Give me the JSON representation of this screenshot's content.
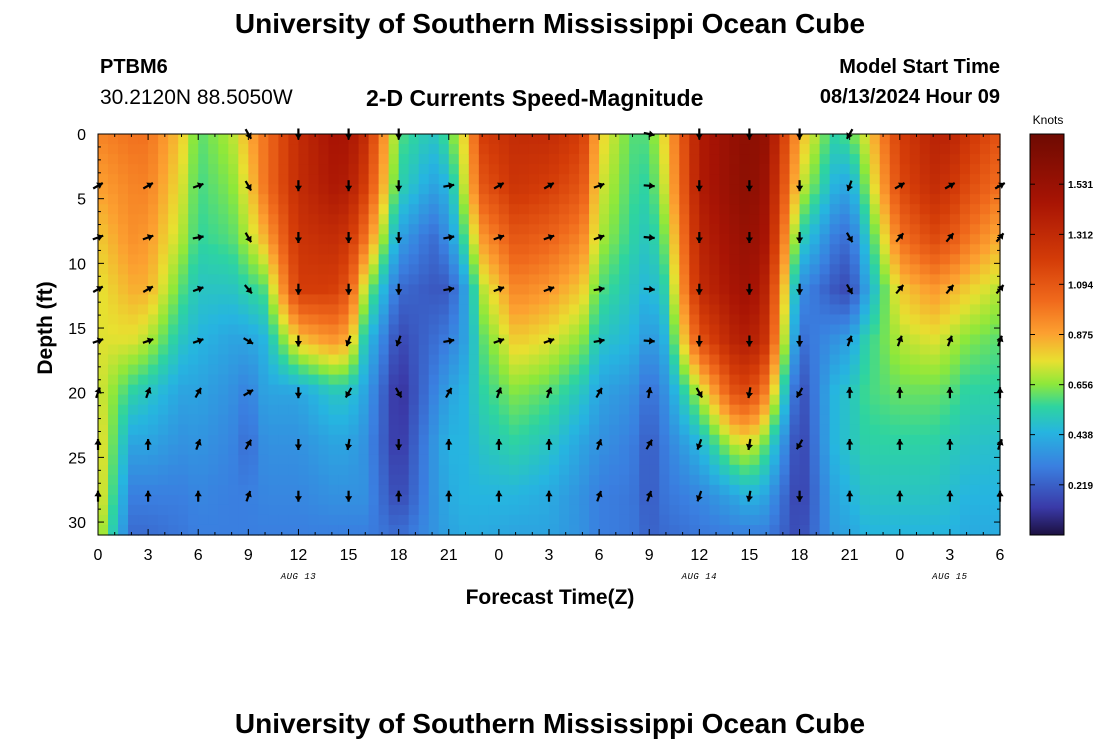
{
  "header": {
    "title": "University of Southern Mississippi Ocean Cube",
    "station": "PTBM6",
    "coordinates": "30.2120N  88.5050W",
    "subtitle": "2-D Currents Speed-Magnitude",
    "model_start_label": "Model Start Time",
    "model_start_value": "08/13/2024 Hour 09"
  },
  "footer": {
    "title": "University of Southern Mississippi Ocean Cube"
  },
  "chart_data": {
    "type": "heatmap",
    "title": "2-D Currents Speed-Magnitude",
    "xlabel": "Forecast Time(Z)",
    "ylabel": "Depth (ft)",
    "x_range_hours": [
      0,
      54
    ],
    "ylim": [
      0,
      31
    ],
    "y_inverted": true,
    "x_tick_labels": [
      "0",
      "3",
      "6",
      "9",
      "12",
      "15",
      "18",
      "21",
      "0",
      "3",
      "6",
      "9",
      "12",
      "15",
      "18",
      "21",
      "0",
      "3",
      "6"
    ],
    "y_ticks": [
      0,
      5,
      10,
      15,
      20,
      25,
      30
    ],
    "day_labels": [
      {
        "text": "AUG 13",
        "hour": 12
      },
      {
        "text": "AUG 14",
        "hour": 36
      },
      {
        "text": "AUG 15",
        "hour": 51
      }
    ],
    "colorbar": {
      "title": "Knots",
      "min": 0.0,
      "max": 1.75,
      "tick_labels": [
        "1.531",
        "1.312",
        "1.094",
        "0.875",
        "0.656",
        "0.438",
        "0.219"
      ],
      "tick_values": [
        1.531,
        1.312,
        1.094,
        0.875,
        0.656,
        0.438,
        0.219
      ],
      "stops": [
        {
          "v": 0.0,
          "color": "#1c1040"
        },
        {
          "v": 0.12,
          "color": "#3a3aa8"
        },
        {
          "v": 0.3,
          "color": "#3a7fe0"
        },
        {
          "v": 0.45,
          "color": "#26b5e0"
        },
        {
          "v": 0.56,
          "color": "#2ed4a0"
        },
        {
          "v": 0.66,
          "color": "#8ee83a"
        },
        {
          "v": 0.76,
          "color": "#e8e030"
        },
        {
          "v": 0.88,
          "color": "#fca030"
        },
        {
          "v": 1.02,
          "color": "#f06a1c"
        },
        {
          "v": 1.2,
          "color": "#d43c08"
        },
        {
          "v": 1.45,
          "color": "#a81404"
        },
        {
          "v": 1.75,
          "color": "#6e0a02"
        }
      ]
    },
    "speed_field": {
      "x_hours": [
        0,
        2,
        3,
        5,
        6,
        8,
        9,
        10,
        12,
        14,
        15,
        16,
        18,
        20,
        21,
        22,
        23,
        25,
        27,
        29,
        30,
        32,
        33,
        34,
        36,
        38,
        39,
        40,
        42,
        44,
        45,
        46,
        48,
        50,
        51,
        52,
        54
      ],
      "depths_ft": [
        0,
        4,
        8,
        12,
        16,
        20,
        24,
        28,
        31
      ],
      "values": [
        [
          0.95,
          0.88,
          0.8,
          0.75,
          0.75,
          0.75,
          0.8,
          0.8,
          0.75
        ],
        [
          1.0,
          0.95,
          0.92,
          0.85,
          0.75,
          0.55,
          0.4,
          0.3,
          0.25
        ],
        [
          1.0,
          0.96,
          0.9,
          0.85,
          0.7,
          0.5,
          0.4,
          0.3,
          0.25
        ],
        [
          0.8,
          0.75,
          0.7,
          0.6,
          0.5,
          0.4,
          0.35,
          0.3,
          0.28
        ],
        [
          0.6,
          0.58,
          0.56,
          0.5,
          0.45,
          0.4,
          0.36,
          0.32,
          0.3
        ],
        [
          0.7,
          0.65,
          0.6,
          0.5,
          0.4,
          0.35,
          0.32,
          0.3,
          0.3
        ],
        [
          0.85,
          0.78,
          0.7,
          0.55,
          0.4,
          0.3,
          0.25,
          0.3,
          0.3
        ],
        [
          1.0,
          1.0,
          0.85,
          0.6,
          0.45,
          0.4,
          0.35,
          0.32,
          0.3
        ],
        [
          1.3,
          1.3,
          1.25,
          1.2,
          0.8,
          0.4,
          0.35,
          0.32,
          0.3
        ],
        [
          1.45,
          1.42,
          1.3,
          1.2,
          0.9,
          0.5,
          0.4,
          0.35,
          0.3
        ],
        [
          1.45,
          1.4,
          1.25,
          1.1,
          0.85,
          0.5,
          0.4,
          0.35,
          0.3
        ],
        [
          1.3,
          1.2,
          1.0,
          0.7,
          0.5,
          0.4,
          0.35,
          0.35,
          0.3
        ],
        [
          0.6,
          0.55,
          0.4,
          0.25,
          0.15,
          0.08,
          0.1,
          0.15,
          0.25
        ],
        [
          0.5,
          0.4,
          0.25,
          0.2,
          0.25,
          0.3,
          0.35,
          0.35,
          0.35
        ],
        [
          0.6,
          0.45,
          0.35,
          0.2,
          0.3,
          0.4,
          0.45,
          0.42,
          0.4
        ],
        [
          0.8,
          0.75,
          0.6,
          0.4,
          0.4,
          0.45,
          0.45,
          0.45,
          0.42
        ],
        [
          1.2,
          1.1,
          0.9,
          0.7,
          0.6,
          0.55,
          0.5,
          0.45,
          0.42
        ],
        [
          1.3,
          1.25,
          1.1,
          0.95,
          0.8,
          0.65,
          0.55,
          0.45,
          0.4
        ],
        [
          1.3,
          1.2,
          1.05,
          0.9,
          0.75,
          0.6,
          0.5,
          0.42,
          0.4
        ],
        [
          1.2,
          1.1,
          0.95,
          0.8,
          0.65,
          0.5,
          0.4,
          0.35,
          0.35
        ],
        [
          0.8,
          0.75,
          0.7,
          0.6,
          0.5,
          0.4,
          0.35,
          0.3,
          0.3
        ],
        [
          0.6,
          0.58,
          0.55,
          0.5,
          0.45,
          0.35,
          0.3,
          0.28,
          0.28
        ],
        [
          0.6,
          0.55,
          0.5,
          0.45,
          0.35,
          0.25,
          0.2,
          0.2,
          0.22
        ],
        [
          0.8,
          0.75,
          0.65,
          0.55,
          0.45,
          0.35,
          0.3,
          0.28,
          0.25
        ],
        [
          1.4,
          1.4,
          1.35,
          1.3,
          1.1,
          0.7,
          0.45,
          0.32,
          0.28
        ],
        [
          1.55,
          1.55,
          1.5,
          1.45,
          1.35,
          1.1,
          0.7,
          0.4,
          0.3
        ],
        [
          1.6,
          1.6,
          1.55,
          1.5,
          1.4,
          1.15,
          0.75,
          0.45,
          0.3
        ],
        [
          1.55,
          1.5,
          1.45,
          1.35,
          1.25,
          0.95,
          0.6,
          0.4,
          0.3
        ],
        [
          0.85,
          0.75,
          0.55,
          0.35,
          0.25,
          0.15,
          0.12,
          0.12,
          0.15
        ],
        [
          0.55,
          0.45,
          0.3,
          0.2,
          0.35,
          0.45,
          0.45,
          0.4,
          0.38
        ],
        [
          0.6,
          0.4,
          0.25,
          0.15,
          0.4,
          0.5,
          0.5,
          0.45,
          0.4
        ],
        [
          0.75,
          0.65,
          0.5,
          0.4,
          0.55,
          0.58,
          0.55,
          0.5,
          0.45
        ],
        [
          1.2,
          1.15,
          1.0,
          0.8,
          0.7,
          0.62,
          0.55,
          0.5,
          0.45
        ],
        [
          1.35,
          1.3,
          1.15,
          0.9,
          0.75,
          0.62,
          0.55,
          0.5,
          0.45
        ],
        [
          1.35,
          1.25,
          1.1,
          0.85,
          0.7,
          0.6,
          0.52,
          0.48,
          0.45
        ],
        [
          1.25,
          1.15,
          1.0,
          0.8,
          0.65,
          0.55,
          0.5,
          0.45,
          0.42
        ],
        [
          1.1,
          1.0,
          0.85,
          0.7,
          0.6,
          0.55,
          0.48,
          0.45,
          0.42
        ]
      ]
    },
    "vectors": {
      "x_hours": [
        0,
        3,
        6,
        9,
        12,
        15,
        18,
        21,
        24,
        27,
        30,
        33,
        36,
        39,
        42,
        45,
        48,
        51,
        54
      ],
      "depths_ft": [
        0,
        4,
        8,
        12,
        16,
        20,
        24,
        28
      ],
      "direction_deg": [
        [
          null,
          null,
          null,
          150,
          180,
          180,
          180,
          null,
          null,
          null,
          null,
          100,
          180,
          180,
          180,
          210,
          null,
          null,
          null
        ],
        [
          60,
          60,
          70,
          150,
          180,
          180,
          180,
          80,
          60,
          60,
          70,
          95,
          180,
          180,
          180,
          200,
          60,
          60,
          60
        ],
        [
          70,
          70,
          80,
          150,
          180,
          180,
          180,
          80,
          70,
          70,
          70,
          95,
          180,
          180,
          180,
          150,
          40,
          40,
          40
        ],
        [
          60,
          60,
          70,
          140,
          180,
          180,
          180,
          80,
          70,
          70,
          80,
          95,
          180,
          180,
          180,
          150,
          40,
          40,
          40
        ],
        [
          70,
          70,
          70,
          120,
          180,
          200,
          200,
          80,
          70,
          70,
          80,
          95,
          180,
          180,
          180,
          20,
          20,
          20,
          20
        ],
        [
          20,
          20,
          30,
          60,
          180,
          210,
          150,
          30,
          20,
          20,
          30,
          10,
          150,
          190,
          210,
          0,
          0,
          0,
          0
        ],
        [
          0,
          0,
          20,
          30,
          180,
          190,
          180,
          0,
          0,
          0,
          20,
          30,
          200,
          190,
          210,
          0,
          0,
          0,
          20
        ],
        [
          0,
          0,
          0,
          20,
          180,
          180,
          0,
          0,
          0,
          0,
          20,
          20,
          200,
          190,
          180,
          0,
          0,
          0,
          0
        ]
      ]
    }
  }
}
